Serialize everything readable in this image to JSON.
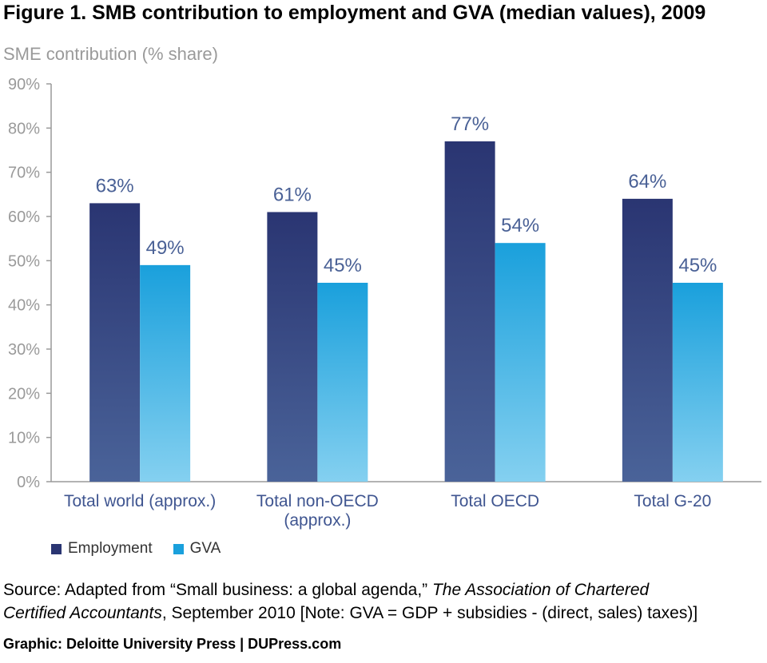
{
  "chart_data": {
    "type": "bar",
    "title": "Figure 1. SMB contribution to employment and GVA (median values), 2009",
    "ylabel": "SME contribution (% share)",
    "xlabel": "",
    "categories": [
      [
        "Total world (approx.)"
      ],
      [
        "Total non-OECD",
        "(approx.)"
      ],
      [
        "Total OECD"
      ],
      [
        "Total G-20"
      ]
    ],
    "series": [
      {
        "name": "Employment",
        "values": [
          63,
          61,
          77,
          64
        ],
        "labels": [
          "63%",
          "61%",
          "77%",
          "64%"
        ],
        "color_top": "#2a3572",
        "color_bottom": "#4a6399"
      },
      {
        "name": "GVA",
        "values": [
          49,
          45,
          54,
          45
        ],
        "labels": [
          "49%",
          "45%",
          "54%",
          "45%"
        ],
        "color_top": "#1aa0dc",
        "color_bottom": "#84d0f0"
      }
    ],
    "ylim": [
      0,
      90
    ],
    "yticks": [
      "0%",
      "10%",
      "20%",
      "30%",
      "40%",
      "50%",
      "60%",
      "70%",
      "80%",
      "90%"
    ],
    "grid": false,
    "legend_position": "bottom-left",
    "colors": {
      "tick_label": "#9a9a9a",
      "data_label": "#4a6196",
      "axis": "#9a9a9a",
      "category_label": "#3f5590"
    }
  },
  "source": {
    "prefix": "Source: Adapted from “Small business: a global agenda,” ",
    "publication_line1": "The Association of Chartered",
    "publication_line2": "Certified Accountants",
    "suffix": ", September 2010 [Note: GVA = GDP + subsidies - (direct, sales) taxes)]"
  },
  "credit": "Graphic: Deloitte University Press  |  DUPress.com"
}
